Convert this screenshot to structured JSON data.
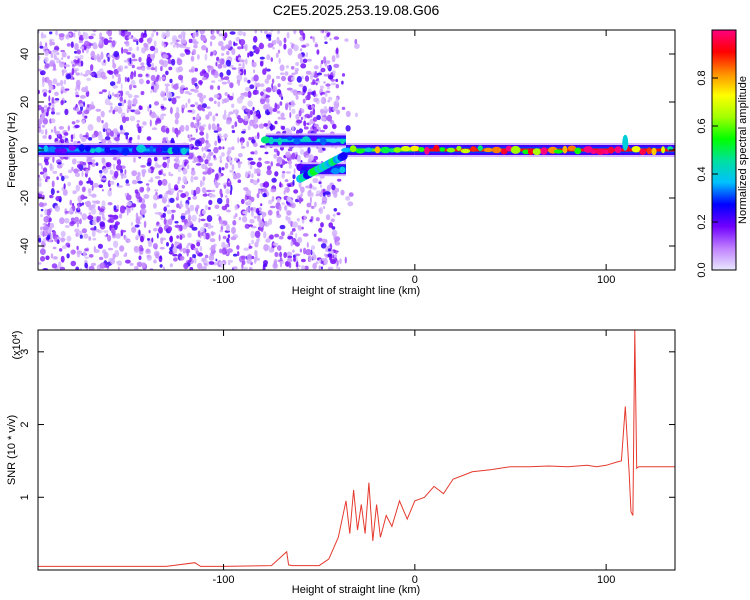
{
  "title": "C2E5.2025.253.19.08.G06",
  "chart_data": [
    {
      "type": "heatmap",
      "xlabel": "Height of straight line (km)",
      "ylabel": "Frequency (Hz)",
      "xlim": [
        -197,
        136
      ],
      "ylim": [
        -50,
        50
      ],
      "xticks": [
        -100,
        0,
        100
      ],
      "yticks": [
        -40,
        -20,
        0,
        20,
        40
      ],
      "colorbar": {
        "label": "Normalized spectral amplitude",
        "ticks": [
          0.0,
          0.2,
          0.4,
          0.6,
          0.8
        ],
        "range": [
          0,
          1
        ],
        "colors": [
          "#e8e8ff",
          "#c080ff",
          "#7000ff",
          "#0000ff",
          "#00c0ff",
          "#00e0a0",
          "#00ff00",
          "#a0ff00",
          "#ffff00",
          "#ff9000",
          "#ff0000",
          "#ff0080"
        ]
      },
      "band": {
        "segments": [
          {
            "x": [
              -197,
              -118
            ],
            "freq": 0,
            "amplitude": 0.35
          },
          {
            "x": [
              -78,
              -36
            ],
            "freq": 4,
            "amplitude": 0.4
          },
          {
            "x": [
              -60,
              -36
            ],
            "freq": -8,
            "amplitude": 0.3
          },
          {
            "x": [
              -36,
              0
            ],
            "freq": 0,
            "amplitude": 0.6
          },
          {
            "x": [
              0,
              136
            ],
            "freq": 0,
            "amplitude": 0.9
          }
        ]
      }
    },
    {
      "type": "line",
      "xlabel": "Height of straight line (km)",
      "ylabel": "SNR (10 * v/v)",
      "scale_note": "(x10",
      "scale_exp": "4",
      "xlim": [
        -197,
        136
      ],
      "ylim": [
        0,
        3.3
      ],
      "xticks": [
        -100,
        0,
        100
      ],
      "yticks": [
        1,
        2,
        3
      ],
      "color": "#e53a2e",
      "series": [
        {
          "x": [
            -197,
            -130,
            -115,
            -112,
            -100,
            -75,
            -67,
            -66,
            -64,
            -60,
            -50,
            -45,
            -40,
            -36,
            -34,
            -32,
            -30,
            -28,
            -26,
            -24,
            -22,
            -20,
            -18,
            -15,
            -12,
            -8,
            -4,
            0,
            5,
            10,
            15,
            20,
            25,
            30,
            40,
            50,
            60,
            70,
            80,
            90,
            95,
            100,
            105,
            108,
            110,
            112,
            113,
            114,
            115,
            116,
            117,
            118,
            120,
            130,
            136
          ],
          "y": [
            0.05,
            0.05,
            0.1,
            0.05,
            0.05,
            0.06,
            0.25,
            0.07,
            0.06,
            0.06,
            0.06,
            0.15,
            0.45,
            0.95,
            0.5,
            1.1,
            0.55,
            0.9,
            0.5,
            1.2,
            0.4,
            0.9,
            0.45,
            0.75,
            0.6,
            0.95,
            0.7,
            0.95,
            1.0,
            1.15,
            1.05,
            1.25,
            1.3,
            1.35,
            1.38,
            1.42,
            1.42,
            1.43,
            1.42,
            1.44,
            1.42,
            1.44,
            1.48,
            1.5,
            2.25,
            1.35,
            0.8,
            0.75,
            3.3,
            1.4,
            1.42,
            1.42,
            1.42,
            1.42,
            1.42
          ]
        }
      ]
    }
  ]
}
